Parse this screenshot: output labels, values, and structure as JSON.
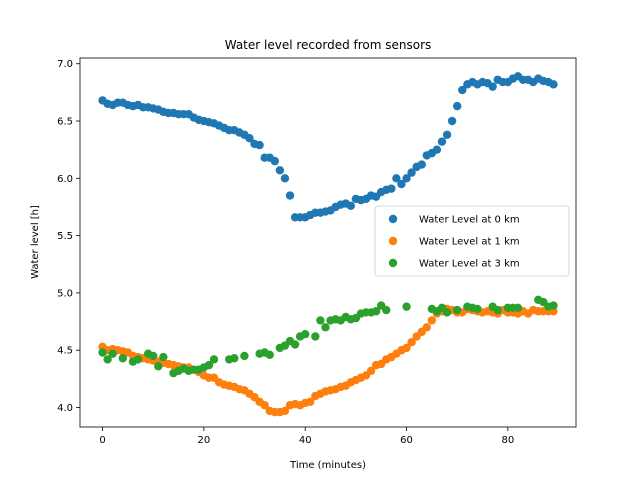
{
  "chart_data": {
    "type": "scatter",
    "title": "Water level recorded from sensors",
    "xlabel": "Time (minutes)",
    "ylabel": "Water level [h]",
    "xlim": [
      -4.45,
      93.45
    ],
    "ylim": [
      3.83,
      7.05
    ],
    "xticks": [
      0,
      20,
      40,
      60,
      80
    ],
    "yticks": [
      4.0,
      4.5,
      5.0,
      5.5,
      6.0,
      6.5,
      7.0
    ],
    "xtick_labels": [
      "0",
      "20",
      "40",
      "60",
      "80"
    ],
    "ytick_labels": [
      "4.0",
      "4.5",
      "5.0",
      "5.5",
      "6.0",
      "6.5",
      "7.0"
    ],
    "grid": false,
    "legend_position": "center-right",
    "series": [
      {
        "name": "Water Level at 0 km",
        "color": "#1f77b4",
        "x": [
          0,
          1,
          2,
          3,
          4,
          5,
          6,
          7,
          8,
          9,
          10,
          11,
          12,
          13,
          14,
          15,
          16,
          17,
          18,
          19,
          20,
          21,
          22,
          23,
          24,
          25,
          26,
          27,
          28,
          29,
          30,
          31,
          32,
          33,
          34,
          35,
          36,
          37,
          38,
          39,
          40,
          41,
          42,
          43,
          44,
          45,
          46,
          47,
          48,
          49,
          50,
          51,
          52,
          53,
          54,
          55,
          56,
          57,
          58,
          59,
          60,
          61,
          62,
          63,
          64,
          65,
          66,
          67,
          68,
          69,
          70,
          71,
          72,
          73,
          74,
          75,
          76,
          77,
          78,
          79,
          80,
          81,
          82,
          83,
          84,
          85,
          86,
          87,
          88,
          89
        ],
        "y": [
          6.68,
          6.65,
          6.64,
          6.66,
          6.66,
          6.64,
          6.63,
          6.64,
          6.62,
          6.62,
          6.61,
          6.6,
          6.58,
          6.57,
          6.57,
          6.56,
          6.56,
          6.56,
          6.53,
          6.51,
          6.5,
          6.49,
          6.48,
          6.46,
          6.44,
          6.42,
          6.42,
          6.4,
          6.38,
          6.35,
          6.3,
          6.29,
          6.18,
          6.18,
          6.15,
          6.07,
          6.0,
          5.85,
          5.66,
          5.66,
          5.66,
          5.68,
          5.7,
          5.7,
          5.71,
          5.72,
          5.75,
          5.77,
          5.78,
          5.76,
          5.82,
          5.81,
          5.82,
          5.85,
          5.84,
          5.88,
          5.9,
          5.91,
          6.0,
          5.95,
          6.0,
          6.05,
          6.1,
          6.12,
          6.2,
          6.22,
          6.25,
          6.32,
          6.38,
          6.5,
          6.63,
          6.77,
          6.82,
          6.84,
          6.82,
          6.84,
          6.83,
          6.8,
          6.86,
          6.84,
          6.84,
          6.87,
          6.89,
          6.86,
          6.86,
          6.84,
          6.87,
          6.85,
          6.84,
          6.82
        ]
      },
      {
        "name": "Water Level at 1 km",
        "color": "#ff7f0e",
        "x": [
          0,
          1,
          2,
          3,
          4,
          5,
          6,
          7,
          8,
          9,
          10,
          11,
          12,
          13,
          14,
          15,
          16,
          17,
          18,
          19,
          20,
          21,
          22,
          23,
          24,
          25,
          26,
          27,
          28,
          29,
          30,
          31,
          32,
          33,
          34,
          35,
          36,
          37,
          38,
          39,
          40,
          41,
          42,
          43,
          44,
          45,
          46,
          47,
          48,
          49,
          50,
          51,
          52,
          53,
          54,
          55,
          56,
          57,
          58,
          59,
          60,
          61,
          62,
          63,
          64,
          65,
          66,
          67,
          68,
          69,
          70,
          71,
          72,
          73,
          74,
          75,
          76,
          77,
          78,
          79,
          80,
          81,
          82,
          83,
          84,
          85,
          86,
          87,
          88,
          89
        ],
        "y": [
          4.53,
          4.5,
          4.51,
          4.5,
          4.49,
          4.48,
          4.45,
          4.44,
          4.43,
          4.42,
          4.41,
          4.4,
          4.39,
          4.38,
          4.37,
          4.36,
          4.35,
          4.35,
          4.33,
          4.31,
          4.28,
          4.26,
          4.26,
          4.22,
          4.2,
          4.19,
          4.18,
          4.16,
          4.15,
          4.12,
          4.09,
          4.05,
          4.02,
          3.97,
          3.96,
          3.96,
          3.97,
          4.02,
          4.03,
          4.02,
          4.04,
          4.05,
          4.1,
          4.12,
          4.14,
          4.15,
          4.16,
          4.18,
          4.19,
          4.22,
          4.24,
          4.26,
          4.28,
          4.32,
          4.37,
          4.38,
          4.42,
          4.44,
          4.47,
          4.5,
          4.52,
          4.57,
          4.62,
          4.66,
          4.7,
          4.76,
          4.82,
          4.84,
          4.86,
          4.85,
          4.83,
          4.83,
          4.86,
          4.85,
          4.84,
          4.83,
          4.84,
          4.83,
          4.82,
          4.85,
          4.83,
          4.83,
          4.82,
          4.84,
          4.82,
          4.85,
          4.84,
          4.84,
          4.84,
          4.84
        ]
      },
      {
        "name": "Water Level at 3 km",
        "color": "#2ca02c",
        "x": [
          0,
          1,
          2,
          4,
          6,
          7,
          9,
          10,
          11,
          12,
          14,
          15,
          16,
          17,
          18,
          19,
          20,
          21,
          22,
          25,
          26,
          28,
          31,
          32,
          33,
          35,
          36,
          37,
          38,
          39,
          40,
          42,
          43,
          44,
          45,
          46,
          47,
          48,
          49,
          50,
          51,
          52,
          53,
          54,
          55,
          56,
          60,
          65,
          66,
          67,
          68,
          70,
          72,
          73,
          74,
          77,
          78,
          80,
          81,
          82,
          86,
          87,
          88,
          89
        ],
        "y": [
          4.48,
          4.42,
          4.47,
          4.43,
          4.4,
          4.42,
          4.47,
          4.45,
          4.36,
          4.44,
          4.3,
          4.32,
          4.34,
          4.32,
          4.33,
          4.33,
          4.35,
          4.37,
          4.42,
          4.42,
          4.43,
          4.45,
          4.47,
          4.48,
          4.46,
          4.52,
          4.54,
          4.58,
          4.55,
          4.62,
          4.64,
          4.62,
          4.76,
          4.7,
          4.76,
          4.77,
          4.76,
          4.79,
          4.77,
          4.78,
          4.82,
          4.83,
          4.83,
          4.84,
          4.89,
          4.85,
          4.88,
          4.86,
          4.84,
          4.87,
          4.83,
          4.85,
          4.88,
          4.87,
          4.86,
          4.88,
          4.85,
          4.87,
          4.87,
          4.87,
          4.94,
          4.92,
          4.88,
          4.89
        ]
      }
    ]
  }
}
